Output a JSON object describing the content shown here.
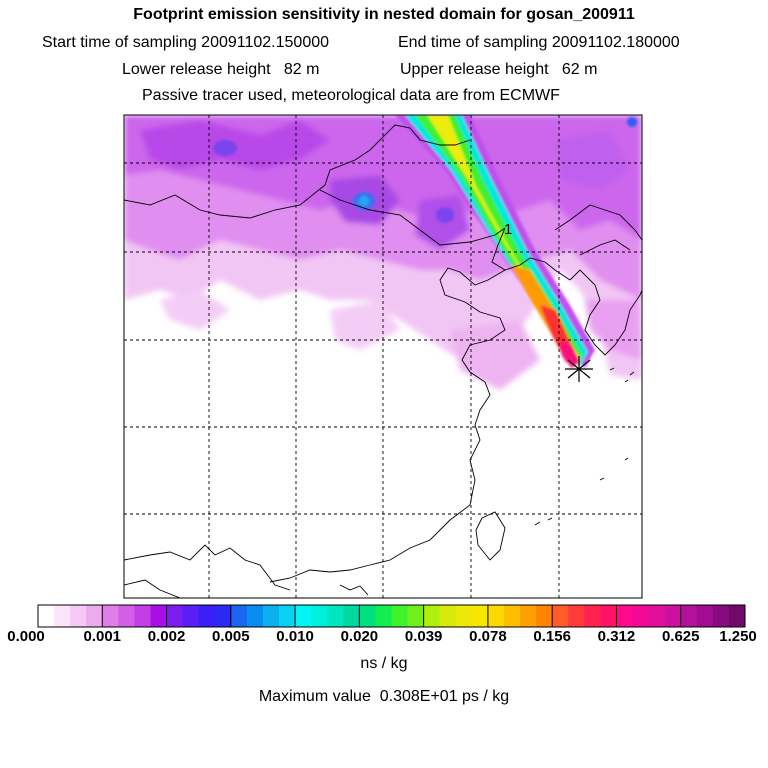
{
  "titles": {
    "line1": "Footprint emission sensitivity in nested domain for gosan_200911",
    "start_label": "Start time of sampling 20091102.150000",
    "end_label": "End time of sampling 20091102.180000",
    "lower_label": "Lower release height   82 m",
    "upper_label": "Upper release height   62 m",
    "line4": "Passive tracer used, meteorological data are from ECMWF"
  },
  "map": {
    "plume_label": "1",
    "marker_icon": "star-receptor-icon"
  },
  "colorbar": {
    "tick_labels": [
      "0.000",
      "0.001",
      "0.002",
      "0.005",
      "0.010",
      "0.020",
      "0.039",
      "0.078",
      "0.156",
      "0.312",
      "0.625",
      "1.250"
    ],
    "colors": [
      "#ffffff",
      "#fbe4fb",
      "#f5c8f5",
      "#eeaaee",
      "#e07ee8",
      "#d45ee6",
      "#c23ee6",
      "#a80fe6",
      "#7a1ef0",
      "#5a1ef6",
      "#3c1ef8",
      "#2a2af4",
      "#1a66f2",
      "#0a8cf0",
      "#0cb0f0",
      "#0ad0f2",
      "#00f6f6",
      "#00eedc",
      "#00e6c0",
      "#00d8a0",
      "#00e080",
      "#10ee50",
      "#40f22c",
      "#70f018",
      "#b0f010",
      "#d8ea0a",
      "#ece80a",
      "#f6e600",
      "#ffd800",
      "#ffbe00",
      "#ffa000",
      "#ff8200",
      "#ff5c28",
      "#ff3a3a",
      "#ff2250",
      "#ff1266",
      "#ff0a8c",
      "#f20a96",
      "#e0109c",
      "#cc10a0",
      "#b4109c",
      "#a00c92",
      "#880a80",
      "#700a6a"
    ],
    "unit": "ns / kg",
    "maximum_value": "Maximum value  0.308E+01 ps / kg"
  }
}
